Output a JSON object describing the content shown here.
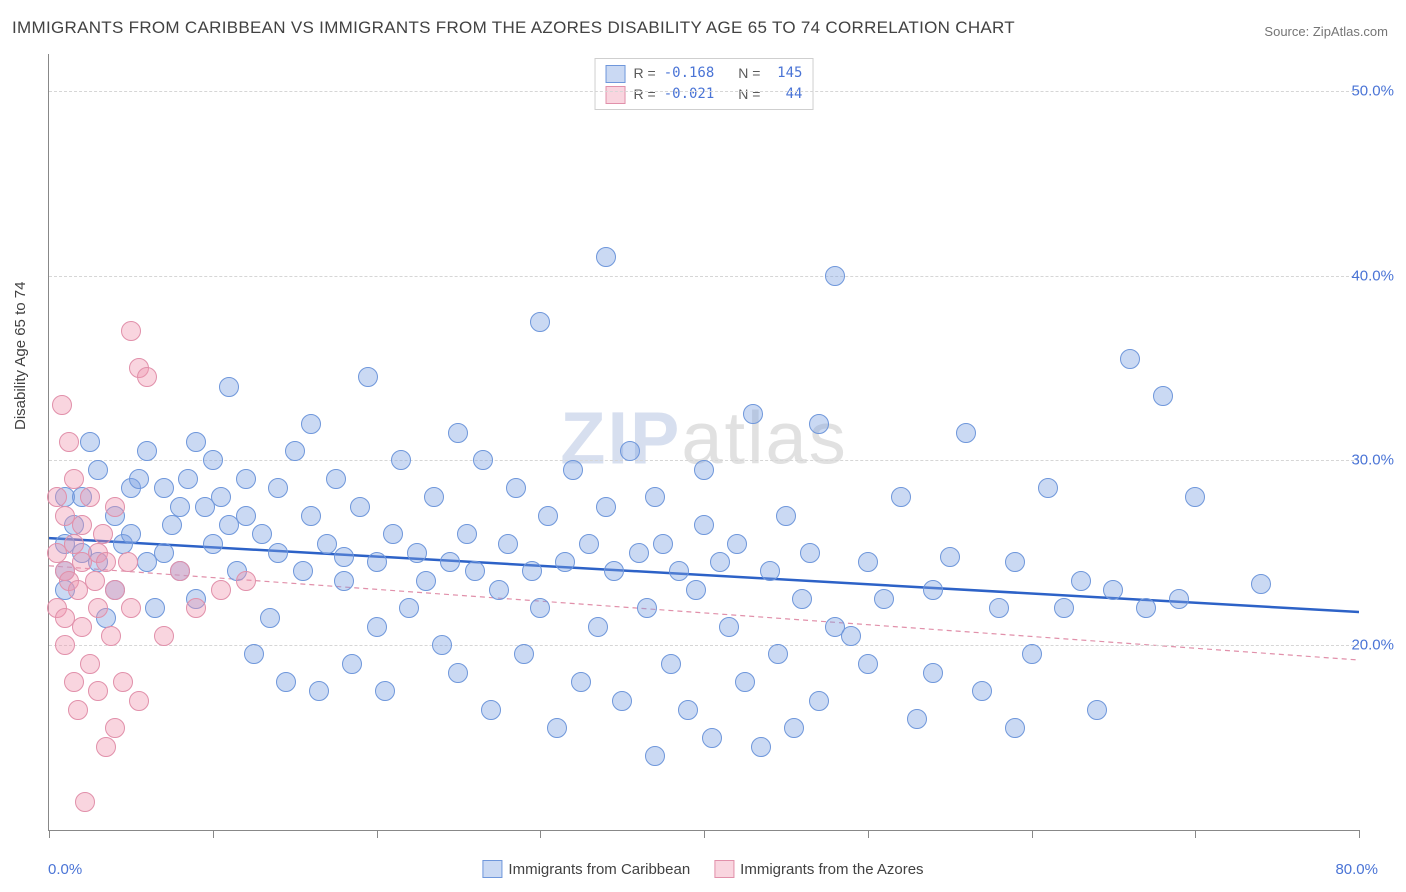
{
  "title": "IMMIGRANTS FROM CARIBBEAN VS IMMIGRANTS FROM THE AZORES DISABILITY AGE 65 TO 74 CORRELATION CHART",
  "source_label": "Source:",
  "source_name": "ZipAtlas.com",
  "y_axis_title": "Disability Age 65 to 74",
  "watermark_a": "ZIP",
  "watermark_b": "atlas",
  "chart": {
    "type": "scatter",
    "xlim": [
      0,
      80
    ],
    "ylim": [
      10,
      52
    ],
    "x_ticks": [
      0,
      10,
      20,
      30,
      40,
      50,
      60,
      70,
      80
    ],
    "x_tick_labels": {
      "0": "0.0%",
      "80": "80.0%"
    },
    "y_gridlines": [
      20,
      30,
      40,
      50
    ],
    "y_tick_labels": {
      "20": "20.0%",
      "30": "30.0%",
      "40": "40.0%",
      "50": "50.0%"
    },
    "background_color": "#ffffff",
    "grid_color": "#d6d6d6",
    "axis_color": "#888888",
    "series": [
      {
        "name": "Immigrants from Caribbean",
        "fill": "rgba(122,160,224,0.40)",
        "stroke": "#6f97db",
        "marker_radius": 10,
        "trend": {
          "y0": 25.8,
          "y1": 21.8,
          "color": "#2d62c7",
          "width": 2.5,
          "dash": "none"
        },
        "stats": {
          "R": "-0.168",
          "N": "145"
        },
        "points": [
          [
            1,
            25.5
          ],
          [
            1,
            24
          ],
          [
            1,
            23
          ],
          [
            1,
            28
          ],
          [
            1.5,
            26.5
          ],
          [
            2,
            28
          ],
          [
            2,
            25
          ],
          [
            2.5,
            31
          ],
          [
            3,
            29.5
          ],
          [
            3,
            24.5
          ],
          [
            3.5,
            21.5
          ],
          [
            4,
            27
          ],
          [
            4,
            23
          ],
          [
            4.5,
            25.5
          ],
          [
            5,
            28.5
          ],
          [
            5,
            26
          ],
          [
            5.5,
            29
          ],
          [
            6,
            24.5
          ],
          [
            6,
            30.5
          ],
          [
            6.5,
            22
          ],
          [
            7,
            28.5
          ],
          [
            7,
            25
          ],
          [
            7.5,
            26.5
          ],
          [
            8,
            27.5
          ],
          [
            8,
            24
          ],
          [
            8.5,
            29
          ],
          [
            9,
            31
          ],
          [
            9,
            22.5
          ],
          [
            9.5,
            27.5
          ],
          [
            10,
            25.5
          ],
          [
            10,
            30
          ],
          [
            10.5,
            28
          ],
          [
            11,
            26.5
          ],
          [
            11,
            34
          ],
          [
            11.5,
            24
          ],
          [
            12,
            29
          ],
          [
            12,
            27
          ],
          [
            12.5,
            19.5
          ],
          [
            13,
            26
          ],
          [
            13.5,
            21.5
          ],
          [
            14,
            28.5
          ],
          [
            14,
            25
          ],
          [
            14.5,
            18
          ],
          [
            15,
            30.5
          ],
          [
            15.5,
            24
          ],
          [
            16,
            27
          ],
          [
            16,
            32
          ],
          [
            16.5,
            17.5
          ],
          [
            17,
            25.5
          ],
          [
            17.5,
            29
          ],
          [
            18,
            23.5
          ],
          [
            18,
            24.8
          ],
          [
            18.5,
            19
          ],
          [
            19,
            27.5
          ],
          [
            19.5,
            34.5
          ],
          [
            20,
            24.5
          ],
          [
            20,
            21
          ],
          [
            20.5,
            17.5
          ],
          [
            21,
            26
          ],
          [
            21.5,
            30
          ],
          [
            22,
            22
          ],
          [
            22.5,
            25
          ],
          [
            23,
            23.5
          ],
          [
            23.5,
            28
          ],
          [
            24,
            20
          ],
          [
            24.5,
            24.5
          ],
          [
            25,
            31.5
          ],
          [
            25,
            18.5
          ],
          [
            25.5,
            26
          ],
          [
            26,
            24
          ],
          [
            26.5,
            30
          ],
          [
            27,
            16.5
          ],
          [
            27.5,
            23
          ],
          [
            28,
            25.5
          ],
          [
            28.5,
            28.5
          ],
          [
            29,
            19.5
          ],
          [
            29.5,
            24
          ],
          [
            30,
            22
          ],
          [
            30,
            37.5
          ],
          [
            30.5,
            27
          ],
          [
            31,
            15.5
          ],
          [
            31.5,
            24.5
          ],
          [
            32,
            29.5
          ],
          [
            32.5,
            18
          ],
          [
            33,
            25.5
          ],
          [
            33.5,
            21
          ],
          [
            34,
            41
          ],
          [
            34,
            27.5
          ],
          [
            34.5,
            24
          ],
          [
            35,
            17
          ],
          [
            35.5,
            30.5
          ],
          [
            36,
            25
          ],
          [
            36.5,
            22
          ],
          [
            37,
            28
          ],
          [
            37,
            14
          ],
          [
            37.5,
            25.5
          ],
          [
            38,
            19
          ],
          [
            38.5,
            24
          ],
          [
            39,
            16.5
          ],
          [
            39.5,
            23
          ],
          [
            40,
            26.5
          ],
          [
            40,
            29.5
          ],
          [
            40.5,
            15
          ],
          [
            41,
            24.5
          ],
          [
            41.5,
            21
          ],
          [
            42,
            25.5
          ],
          [
            42.5,
            18
          ],
          [
            43,
            32.5
          ],
          [
            43.5,
            14.5
          ],
          [
            44,
            24
          ],
          [
            44.5,
            19.5
          ],
          [
            45,
            27
          ],
          [
            45.5,
            15.5
          ],
          [
            46,
            22.5
          ],
          [
            46.5,
            25
          ],
          [
            47,
            32
          ],
          [
            47,
            17
          ],
          [
            48,
            40
          ],
          [
            48,
            21
          ],
          [
            49,
            20.5
          ],
          [
            50,
            24.5
          ],
          [
            50,
            19
          ],
          [
            51,
            22.5
          ],
          [
            52,
            28
          ],
          [
            53,
            16
          ],
          [
            54,
            23
          ],
          [
            54,
            18.5
          ],
          [
            55,
            24.8
          ],
          [
            56,
            31.5
          ],
          [
            57,
            17.5
          ],
          [
            58,
            22
          ],
          [
            59,
            24.5
          ],
          [
            59,
            15.5
          ],
          [
            60,
            19.5
          ],
          [
            61,
            28.5
          ],
          [
            62,
            22
          ],
          [
            63,
            23.5
          ],
          [
            64,
            16.5
          ],
          [
            65,
            23
          ],
          [
            66,
            35.5
          ],
          [
            67,
            22
          ],
          [
            68,
            33.5
          ],
          [
            69,
            22.5
          ],
          [
            70,
            28
          ],
          [
            74,
            23.3
          ]
        ]
      },
      {
        "name": "Immigrants from the Azores",
        "fill": "rgba(240,150,175,0.40)",
        "stroke": "#e190aa",
        "marker_radius": 10,
        "trend": {
          "y0": 24.3,
          "y1": 19.2,
          "color": "#e190aa",
          "width": 1.2,
          "dash": "5,4"
        },
        "stats": {
          "R": "-0.021",
          "N": "44"
        },
        "points": [
          [
            0.5,
            25
          ],
          [
            0.5,
            22
          ],
          [
            0.5,
            28
          ],
          [
            0.8,
            33
          ],
          [
            1,
            24
          ],
          [
            1,
            20
          ],
          [
            1,
            21.5
          ],
          [
            1,
            27
          ],
          [
            1.2,
            23.5
          ],
          [
            1.2,
            31
          ],
          [
            1.5,
            18
          ],
          [
            1.5,
            25.5
          ],
          [
            1.5,
            29
          ],
          [
            1.8,
            23
          ],
          [
            1.8,
            16.5
          ],
          [
            2,
            26.5
          ],
          [
            2,
            24.5
          ],
          [
            2,
            21
          ],
          [
            2.2,
            11.5
          ],
          [
            2.5,
            19
          ],
          [
            2.5,
            28
          ],
          [
            2.8,
            23.5
          ],
          [
            3,
            25
          ],
          [
            3,
            17.5
          ],
          [
            3,
            22
          ],
          [
            3.3,
            26
          ],
          [
            3.5,
            24.5
          ],
          [
            3.5,
            14.5
          ],
          [
            3.8,
            20.5
          ],
          [
            4,
            27.5
          ],
          [
            4,
            23
          ],
          [
            4,
            15.5
          ],
          [
            4.5,
            18
          ],
          [
            4.8,
            24.5
          ],
          [
            5,
            37
          ],
          [
            5,
            22
          ],
          [
            5.5,
            35
          ],
          [
            5.5,
            17
          ],
          [
            6,
            34.5
          ],
          [
            7,
            20.5
          ],
          [
            8,
            24
          ],
          [
            9,
            22
          ],
          [
            10.5,
            23
          ],
          [
            12,
            23.5
          ]
        ]
      }
    ]
  },
  "legend_labels": {
    "R": "R =",
    "N": "N ="
  },
  "bottom_legend": [
    {
      "label": "Immigrants from Caribbean",
      "fill": "rgba(122,160,224,0.40)",
      "stroke": "#6f97db"
    },
    {
      "label": "Immigrants from the Azores",
      "fill": "rgba(240,150,175,0.40)",
      "stroke": "#e190aa"
    }
  ]
}
